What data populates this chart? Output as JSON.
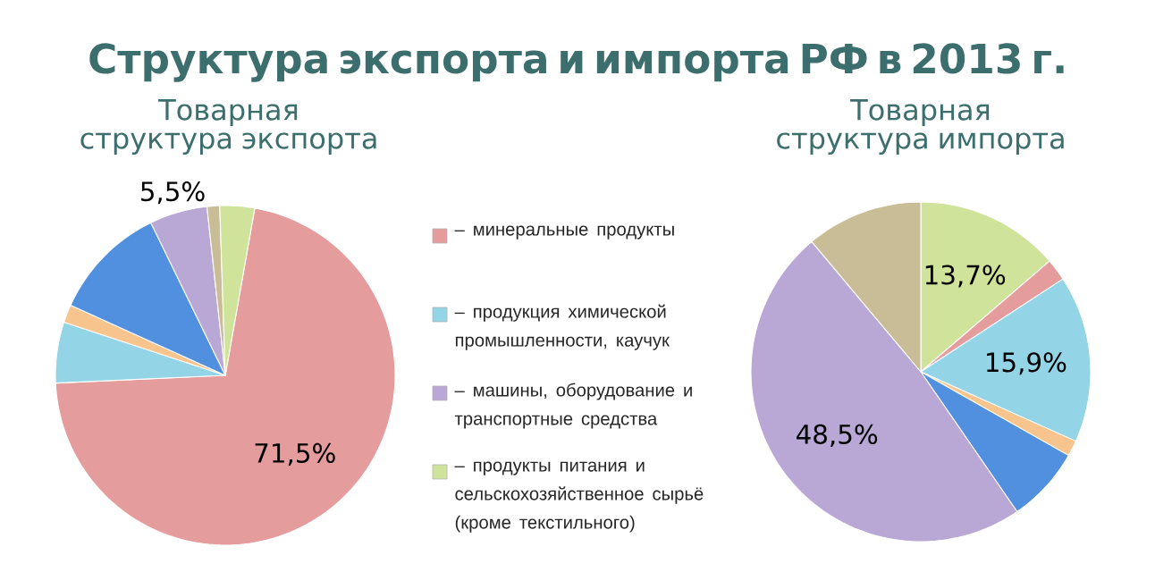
{
  "chart_data": [
    {
      "type": "pie",
      "title": "Структура экспорта и импорта РФ в 2013 г.",
      "subtitle": "Товарная структура экспорта",
      "categories": [
        "– минеральные продукты",
        "– продукция химической промышленности, каучук",
        null,
        null,
        "– машины, оборудование и транспортные средства",
        null,
        "– продукты питания и сельскохозяйственное сырьё (кроме текстильного)"
      ],
      "values": [
        71.5,
        5.8,
        1.7,
        11.0,
        5.5,
        1.2,
        3.3
      ],
      "colors": [
        "#e59c9c",
        "#93d4e6",
        "#f8c48e",
        "#5190de",
        "#b9a7d5",
        "#c9bd97",
        "#cfe39a"
      ],
      "value_labels": [
        "71,5%",
        null,
        null,
        null,
        "5,5%",
        null,
        null
      ],
      "legend": "right"
    },
    {
      "type": "pie",
      "title": "Товарная структура импорта",
      "categories": [
        null,
        null,
        null,
        null,
        null,
        null,
        null
      ],
      "values": [
        13.7,
        2.1,
        15.9,
        1.5,
        7.2,
        48.5,
        11.1
      ],
      "colors": [
        "#cfe39a",
        "#e59c9c",
        "#93d4e6",
        "#f8c48e",
        "#5190de",
        "#b9a7d5",
        "#c9bd97"
      ],
      "value_labels": [
        "13,7%",
        null,
        "15,9%",
        null,
        null,
        "48,5%",
        null
      ]
    }
  ]
}
